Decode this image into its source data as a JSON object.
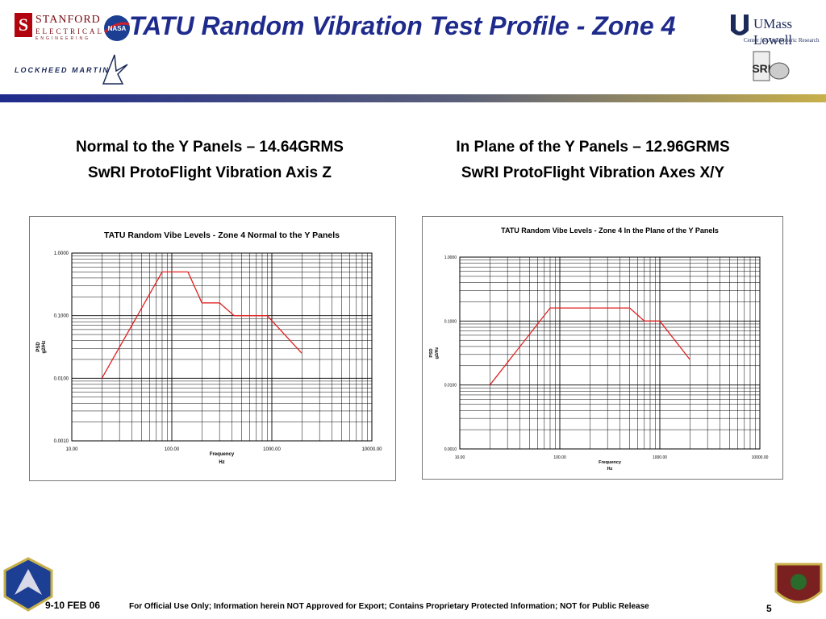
{
  "header": {
    "title": "TATU Random Vibration Test Profile - Zone 4",
    "logos": {
      "stanford_initial": "S",
      "stanford_name": "STANFORD",
      "stanford_sub": "ELECTRICAL",
      "stanford_sub2": "ENGINEERING",
      "nasa": "NASA",
      "lockheed": "LOCKHEED MARTIN",
      "umass": "UMass Lowell",
      "umass_sub": "Center for Atmospheric Research",
      "sri": "SRI"
    },
    "bar_colors": [
      "#1f2b8c",
      "#c8b04a"
    ]
  },
  "left_panel": {
    "heading1": "Normal to the Y Panels – 14.64GRMS",
    "heading2": "SwRI ProtoFlight Vibration Axis Z"
  },
  "right_panel": {
    "heading1": "In Plane of the Y Panels – 12.96GRMS",
    "heading2": "SwRI ProtoFlight Vibration Axes X/Y"
  },
  "chart_data": [
    {
      "type": "line",
      "title": "TATU Random Vibe Levels - Zone 4 Normal to the Y Panels",
      "xlabel": "Frequency",
      "xlabel2": "Hz",
      "ylabel": "PSD",
      "ylabel2": "g2/Hz",
      "x_scale": "log",
      "y_scale": "log",
      "xlim": [
        10,
        10000
      ],
      "ylim": [
        0.001,
        1
      ],
      "x_ticks": [
        "10.00",
        "100.00",
        "1000.00",
        "10000.00"
      ],
      "y_ticks": [
        "0.0010",
        "0.0100",
        "0.1000",
        "1.0000"
      ],
      "grid": true,
      "line_color": "#e02020",
      "series": [
        {
          "x": [
            20,
            80,
            145,
            200,
            300,
            420,
            900,
            2000
          ],
          "y": [
            0.01,
            0.5,
            0.5,
            0.16,
            0.16,
            0.1,
            0.1,
            0.025
          ]
        }
      ]
    },
    {
      "type": "line",
      "title": "TATU Random Vibe Levels - Zone 4 In the Plane of the Y Panels",
      "xlabel": "Frequency",
      "xlabel2": "Hz",
      "ylabel": "PSD",
      "ylabel2": "g2/Hz",
      "x_scale": "log",
      "y_scale": "log",
      "xlim": [
        10,
        10000
      ],
      "ylim": [
        0.001,
        1
      ],
      "x_ticks": [
        "10.00",
        "100.00",
        "1000.00",
        "10000.00"
      ],
      "y_ticks": [
        "0.0010",
        "0.0100",
        "0.1000",
        "1.0000"
      ],
      "grid": true,
      "line_color": "#e02020",
      "series": [
        {
          "x": [
            20,
            80,
            500,
            700,
            1000,
            2000
          ],
          "y": [
            0.01,
            0.16,
            0.16,
            0.1,
            0.1,
            0.025
          ]
        }
      ]
    }
  ],
  "footer": {
    "date": "9-10 FEB 06",
    "note": "For Official Use Only; Information herein NOT Approved for Export; Contains Proprietary Protected Information; NOT for Public Release",
    "page": "5"
  }
}
